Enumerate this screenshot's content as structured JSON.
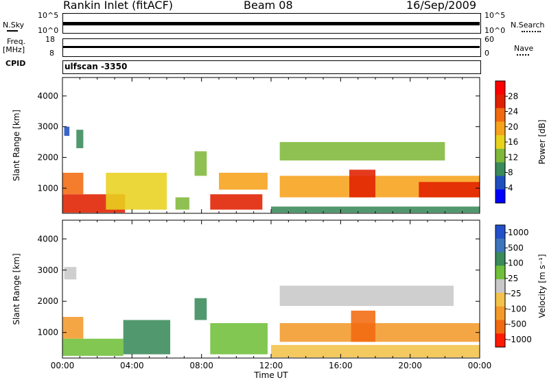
{
  "header": {
    "station": "Rankin Inlet (fitACF)",
    "beam": "Beam 08",
    "date": "16/Sep/2009"
  },
  "top_panels": {
    "nsky_label": "N.Sky",
    "nsky_ticks": [
      "10^5",
      "10^0"
    ],
    "nsearch_label": "N.Search",
    "nsearch_ticks": [
      "10^5",
      "10^0"
    ],
    "freq_label": "Freq.",
    "freq_unit": "[MHz]",
    "freq_ticks": [
      "18",
      "8"
    ],
    "nave_label": "Nave",
    "nave_ticks": [
      "60",
      "0"
    ],
    "cpid_label": "CPID",
    "cpid_value": "ulfscan -3350"
  },
  "colors": {
    "power": [
      "#0000ff",
      "#1f4fbf",
      "#3a8a5a",
      "#7fb83a",
      "#e8d21e",
      "#f7a21b",
      "#f26a10",
      "#e02000",
      "#ff0000"
    ],
    "velocity": [
      "#2350c8",
      "#3d74bb",
      "#3a8a5a",
      "#6fbf3a",
      "#c8c8c8",
      "#f3c24a",
      "#f39a2b",
      "#f26a10",
      "#ff1a00"
    ]
  },
  "chart_data": [
    {
      "type": "heatmap",
      "name": "power",
      "ylabel": "Slant Range [km]",
      "xlabel": "",
      "ylim": [
        180,
        4600
      ],
      "yticks": [
        "1000",
        "2000",
        "3000",
        "4000"
      ],
      "ytick_values": [
        1000,
        2000,
        3000,
        4000
      ],
      "xlim": [
        0,
        24
      ],
      "colorbar": {
        "label": "Power [dB]",
        "ticks": [
          "4",
          "8",
          "12",
          "16",
          "20",
          "24",
          "28"
        ],
        "range": [
          0,
          32
        ]
      },
      "regions": [
        {
          "x": [
            0,
            3.6
          ],
          "y": [
            200,
            800
          ],
          "value": 27
        },
        {
          "x": [
            0,
            1.2
          ],
          "y": [
            800,
            1500
          ],
          "value": 22
        },
        {
          "x": [
            0.8,
            1.2
          ],
          "y": [
            2300,
            2900
          ],
          "value": 10
        },
        {
          "x": [
            0.1,
            0.4
          ],
          "y": [
            2700,
            3000
          ],
          "value": 5
        },
        {
          "x": [
            2.5,
            6.0
          ],
          "y": [
            300,
            1500
          ],
          "value": 17
        },
        {
          "x": [
            6.5,
            7.3
          ],
          "y": [
            300,
            700
          ],
          "value": 14
        },
        {
          "x": [
            7.6,
            8.3
          ],
          "y": [
            1400,
            2200
          ],
          "value": 12
        },
        {
          "x": [
            8.5,
            11.5
          ],
          "y": [
            300,
            800
          ],
          "value": 25
        },
        {
          "x": [
            9.0,
            11.8
          ],
          "y": [
            950,
            1500
          ],
          "value": 18
        },
        {
          "x": [
            12.5,
            22.0
          ],
          "y": [
            1900,
            2500
          ],
          "value": 14
        },
        {
          "x": [
            12.5,
            24.0
          ],
          "y": [
            700,
            1400
          ],
          "value": 20
        },
        {
          "x": [
            16.5,
            18.0
          ],
          "y": [
            700,
            1600
          ],
          "value": 27
        },
        {
          "x": [
            20.5,
            24.0
          ],
          "y": [
            700,
            1200
          ],
          "value": 26
        },
        {
          "x": [
            12.0,
            24.0
          ],
          "y": [
            200,
            400
          ],
          "value": 9
        }
      ]
    },
    {
      "type": "heatmap",
      "name": "velocity",
      "ylabel": "Slant Range [km]",
      "xlabel": "Time UT",
      "ylim": [
        180,
        4600
      ],
      "yticks": [
        "1000",
        "2000",
        "3000",
        "4000"
      ],
      "ytick_values": [
        1000,
        2000,
        3000,
        4000
      ],
      "xlim": [
        0,
        24
      ],
      "xticks": [
        "00:00",
        "04:00",
        "08:00",
        "12:00",
        "16:00",
        "20:00",
        "00:00"
      ],
      "xtick_values": [
        0,
        4,
        8,
        12,
        16,
        20,
        24
      ],
      "colorbar": {
        "label": "Velocity [m s⁻¹]",
        "ticks": [
          "1000",
          "500",
          "100",
          "25",
          "-25",
          "-100",
          "-500",
          "-1000"
        ],
        "range": [
          -1200,
          1200
        ]
      },
      "regions": [
        {
          "x": [
            0,
            1.2
          ],
          "y": [
            800,
            1500
          ],
          "value": -400
        },
        {
          "x": [
            0,
            3.5
          ],
          "y": [
            250,
            800
          ],
          "value": 80
        },
        {
          "x": [
            0.1,
            0.8
          ],
          "y": [
            2700,
            3100
          ],
          "value": 0
        },
        {
          "x": [
            3.5,
            6.2
          ],
          "y": [
            300,
            1400
          ],
          "value": 120
        },
        {
          "x": [
            7.6,
            8.3
          ],
          "y": [
            1400,
            2100
          ],
          "value": 400
        },
        {
          "x": [
            8.5,
            11.8
          ],
          "y": [
            300,
            1300
          ],
          "value": 60
        },
        {
          "x": [
            12.5,
            22.5
          ],
          "y": [
            1850,
            2500
          ],
          "value": 0
        },
        {
          "x": [
            12.5,
            24.0
          ],
          "y": [
            700,
            1300
          ],
          "value": -350
        },
        {
          "x": [
            16.6,
            18.0
          ],
          "y": [
            700,
            1700
          ],
          "value": -900
        },
        {
          "x": [
            12.0,
            24.0
          ],
          "y": [
            200,
            600
          ],
          "value": -80
        }
      ]
    }
  ]
}
